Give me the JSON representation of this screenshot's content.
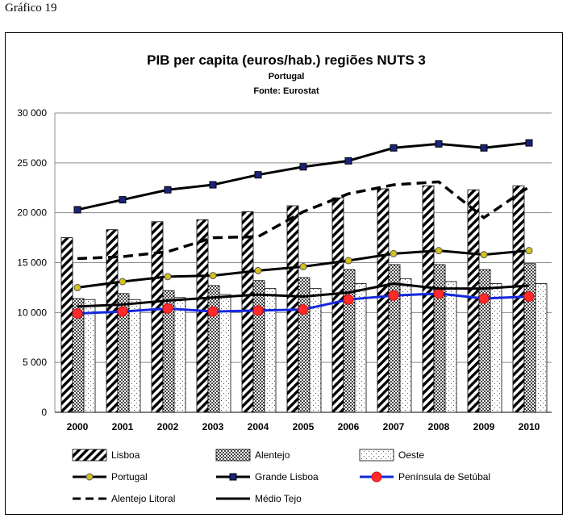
{
  "figure_label": "Gráfico 19",
  "chart_data": {
    "type": "bar",
    "title": "PIB per capita (euros/hab.) regiões NUTS 3",
    "subtitle": "Portugal",
    "source": "Fonte: Eurostat",
    "xlabel": "",
    "ylabel": "",
    "ylim": [
      0,
      30000
    ],
    "yticks": [
      0,
      5000,
      10000,
      15000,
      20000,
      25000,
      30000
    ],
    "ytick_labels": [
      "0",
      "5 000",
      "10 000",
      "15 000",
      "20 000",
      "25 000",
      "30 000"
    ],
    "grid": true,
    "categories": [
      "2000",
      "2001",
      "2002",
      "2003",
      "2004",
      "2005",
      "2006",
      "2007",
      "2008",
      "2009",
      "2010"
    ],
    "bar_series": [
      {
        "name": "Lisboa",
        "pattern": "diagonal-hatch",
        "values": [
          17500,
          18300,
          19100,
          19300,
          20100,
          20700,
          21500,
          22400,
          22700,
          22300,
          22700
        ]
      },
      {
        "name": "Alentejo",
        "pattern": "checker",
        "values": [
          11400,
          11900,
          12200,
          12700,
          13200,
          13500,
          14300,
          14800,
          14800,
          14300,
          14900
        ]
      },
      {
        "name": "Oeste",
        "pattern": "dots",
        "values": [
          11300,
          11300,
          11500,
          11800,
          12400,
          12400,
          12900,
          13400,
          13100,
          12900,
          12900
        ]
      }
    ],
    "line_series": [
      {
        "name": "Portugal",
        "style": "solid-marker-circle",
        "color": "#000000",
        "marker_color": "#d4c21a",
        "values": [
          12500,
          13100,
          13600,
          13700,
          14200,
          14600,
          15200,
          15900,
          16200,
          15800,
          16200
        ]
      },
      {
        "name": "Grande Lisboa",
        "style": "solid-marker-square",
        "color": "#000000",
        "marker_color": "#1a237e",
        "values": [
          20300,
          21300,
          22300,
          22800,
          23800,
          24600,
          25200,
          26500,
          26900,
          26500,
          27000
        ]
      },
      {
        "name": "Península de Setúbal",
        "style": "solid-marker-circle",
        "color": "#1428dc",
        "marker_color": "#ff2a2a",
        "values": [
          9900,
          10100,
          10400,
          10100,
          10200,
          10300,
          11300,
          11700,
          11900,
          11400,
          11600
        ]
      },
      {
        "name": "Alentejo Litoral",
        "style": "dashed",
        "color": "#000000",
        "values": [
          15400,
          15600,
          16100,
          17500,
          17600,
          20100,
          21900,
          22800,
          23100,
          19500,
          22600
        ]
      },
      {
        "name": "Médio Tejo",
        "style": "solid",
        "color": "#000000",
        "values": [
          10600,
          10800,
          11200,
          11500,
          11800,
          11600,
          12000,
          12900,
          12400,
          12400,
          12700
        ]
      }
    ],
    "legend": [
      "Lisboa",
      "Alentejo",
      "Oeste",
      "Portugal",
      "Grande Lisboa",
      "Península de Setúbal",
      "Alentejo Litoral",
      "Médio Tejo"
    ],
    "legend_position": "bottom"
  }
}
